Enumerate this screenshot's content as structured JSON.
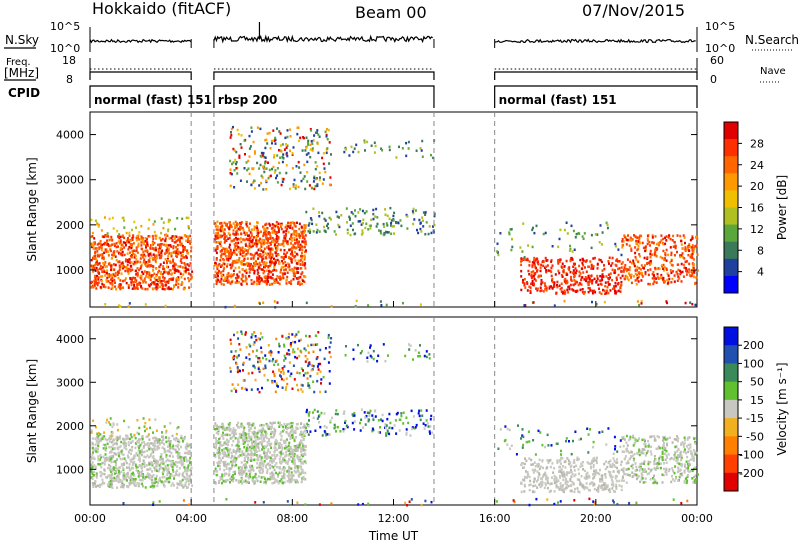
{
  "header": {
    "station": "Hokkaido (fitACF)",
    "beam": "Beam 00",
    "date": "07/Nov/2015"
  },
  "chart_data": [
    {
      "id": "noise",
      "type": "line",
      "ylabel": "N.Sky",
      "ylabel_right": "N.Search",
      "y_ticks_left": [
        "10^5",
        "10^0"
      ],
      "y_ticks_right": [
        "10^5",
        "10^0"
      ],
      "scale": "log"
    },
    {
      "id": "freq",
      "type": "line",
      "ylabel": "Freq.",
      "yunit": "[MHz]",
      "ylabel_right": "Nave",
      "y_ticks_left": [
        "18",
        "8"
      ],
      "y_ticks_right": [
        "60",
        "0"
      ],
      "ylim": [
        8,
        18
      ],
      "ylim_right": [
        0,
        60
      ]
    },
    {
      "id": "cpid",
      "type": "table",
      "label": "CPID",
      "segments": [
        {
          "label": "normal (fast) 151",
          "start_h": 0,
          "end_h": 4
        },
        {
          "label": "rbsp 200",
          "start_h": 4.9,
          "end_h": 13.6
        },
        {
          "label": "normal (fast) 151",
          "start_h": 16,
          "end_h": 24
        }
      ]
    },
    {
      "id": "power",
      "type": "heatmap",
      "ylabel": "Slant Range [km]",
      "ylim": [
        180,
        4500
      ],
      "y_ticks": [
        1000,
        2000,
        3000,
        4000
      ],
      "colorbar_label": "Power [dB]",
      "colorbar_ticks": [
        "28",
        "24",
        "20",
        "16",
        "12",
        "8",
        "4"
      ],
      "colorbar_colors": [
        "#e00000",
        "#ff3000",
        "#ff6600",
        "#ff9900",
        "#f0c000",
        "#b0c020",
        "#5aa83c",
        "#3a7a58",
        "#2040a0",
        "#0000ff"
      ]
    },
    {
      "id": "velocity",
      "type": "heatmap",
      "ylabel": "Slant Range [km]",
      "ylim": [
        180,
        4500
      ],
      "y_ticks": [
        1000,
        2000,
        3000,
        4000
      ],
      "colorbar_label": "Velocity [m s⁻¹]",
      "colorbar_ticks": [
        "200",
        "100",
        "50",
        "15",
        "-15",
        "-50",
        "-100",
        "-200"
      ],
      "colorbar_colors": [
        "#0010e0",
        "#2050b0",
        "#3a8a5a",
        "#60c030",
        "#c8c8c0",
        "#f0b020",
        "#ff8000",
        "#ff4000",
        "#e00000"
      ]
    }
  ],
  "x_axis": {
    "label": "Time UT",
    "ticks": [
      "00:00",
      "04:00",
      "08:00",
      "12:00",
      "16:00",
      "20:00",
      "00:00"
    ],
    "xlim_h": [
      0,
      24
    ]
  },
  "data_gaps_h": [
    [
      4,
      4.9
    ],
    [
      13.6,
      16
    ]
  ]
}
